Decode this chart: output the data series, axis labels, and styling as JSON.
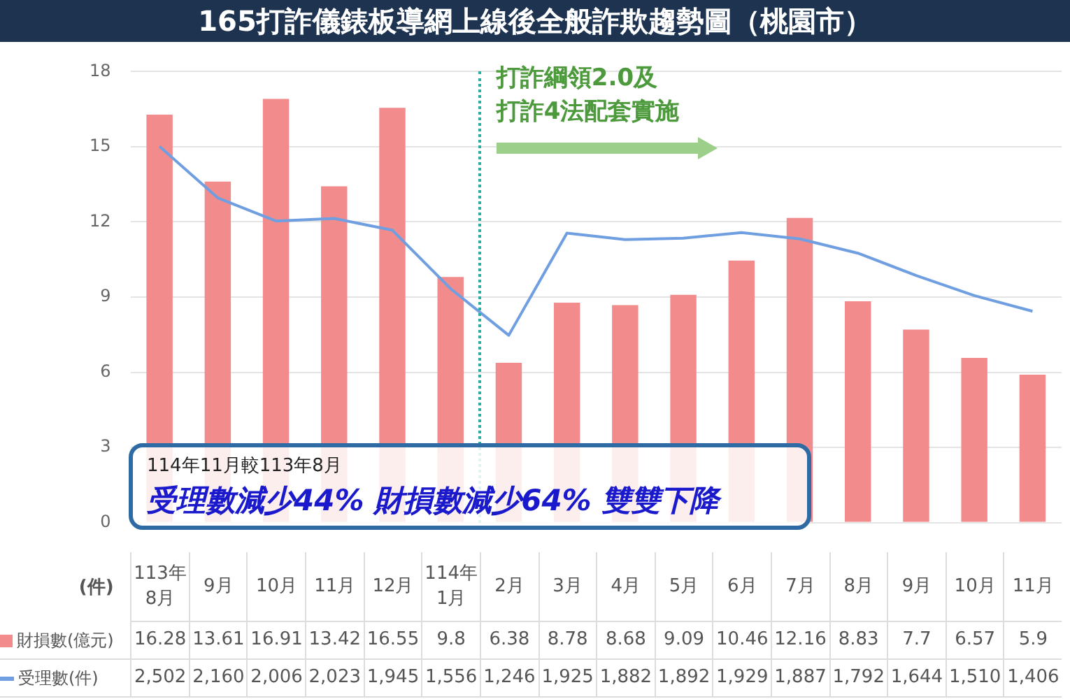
{
  "chart_data": {
    "type": "bar",
    "title": "165打詐儀錶板導網上線後全般詐欺趨勢圖（桃園市）",
    "categories": [
      "113年8月",
      "9月",
      "10月",
      "11月",
      "12月",
      "114年1月",
      "2月",
      "3月",
      "4月",
      "5月",
      "6月",
      "7月",
      "8月",
      "9月",
      "10月",
      "11月"
    ],
    "series": [
      {
        "name": "財損數(億元)",
        "color": "#f28b8b",
        "values": [
          16.28,
          13.61,
          16.91,
          13.42,
          16.55,
          9.8,
          6.38,
          8.78,
          8.68,
          9.09,
          10.46,
          12.16,
          8.83,
          7.7,
          6.57,
          5.9
        ],
        "value_labels": [
          "16.28",
          "13.61",
          "16.91",
          "13.42",
          "16.55",
          "9.8",
          "6.38",
          "8.78",
          "8.68",
          "9.09",
          "10.46",
          "12.16",
          "8.83",
          "7.7",
          "6.57",
          "5.9"
        ]
      },
      {
        "name": "受理數(件)",
        "type": "line",
        "axis": "y2",
        "color": "#6f9fe0",
        "values": [
          2502,
          2160,
          2006,
          2023,
          1945,
          1556,
          1246,
          1925,
          1882,
          1892,
          1929,
          1887,
          1792,
          1644,
          1510,
          1406
        ],
        "value_labels": [
          "2,502",
          "2,160",
          "2,006",
          "2,023",
          "1,945",
          "1,556",
          "1,246",
          "1,925",
          "1,882",
          "1,892",
          "1,929",
          "1,887",
          "1,792",
          "1,644",
          "1,510",
          "1,406"
        ]
      }
    ],
    "ylim": [
      0,
      18
    ],
    "yticks": [
      0,
      3,
      6,
      9,
      12,
      15,
      18
    ],
    "y2lim": [
      0,
      3000
    ],
    "grid": "y",
    "legend": "bottom",
    "marker": "none",
    "line_style": "solid",
    "ref_lines": [
      {
        "axis": "x",
        "value": "2月",
        "color": "#2ab0a0",
        "line_style": "dotted"
      }
    ],
    "annotations": [
      "(件)",
      "打詐綱領2.0及",
      "打詐4法配套實施",
      "114年11月較113年8月",
      "受理數減少44% 財損數減少64% 雙雙下降"
    ]
  }
}
